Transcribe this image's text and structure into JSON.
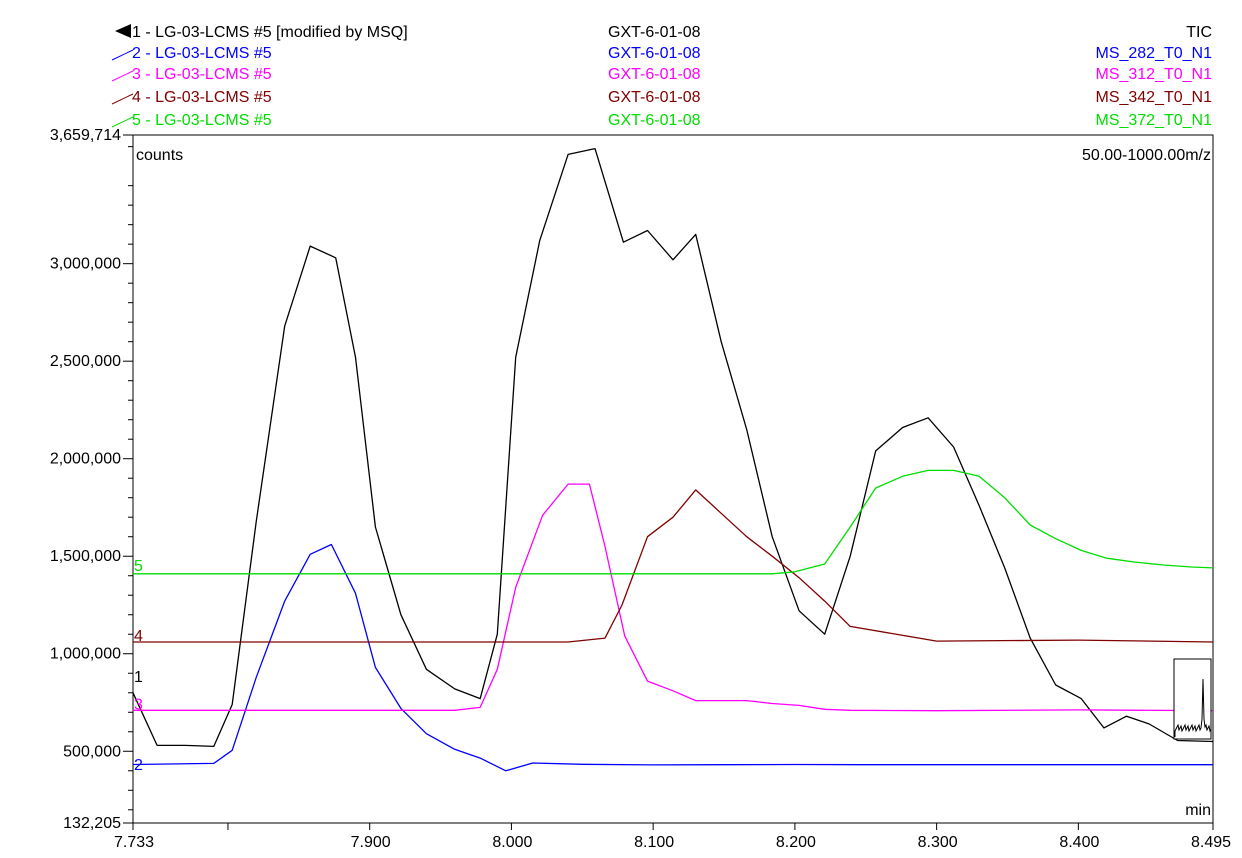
{
  "chart_data": {
    "type": "line",
    "title": "",
    "xlabel": "min",
    "ylabel": "counts",
    "mass_range": "50.00-1000.00m/z",
    "xlim": [
      7.733,
      8.495
    ],
    "ylim": [
      132205,
      3659714
    ],
    "x_ticks": [
      7.733,
      7.9,
      8.0,
      8.1,
      8.2,
      8.3,
      8.4,
      8.495
    ],
    "x_tick_labels": [
      "7.733",
      "7.900",
      "8.000",
      "8.100",
      "8.200",
      "8.300",
      "8.400",
      "8.495"
    ],
    "x_unlabeled_ticks": [
      7.8
    ],
    "y_ticks": [
      132205,
      500000,
      1000000,
      1500000,
      2000000,
      2500000,
      3000000,
      3659714
    ],
    "y_tick_labels": [
      "132,205",
      "500,000",
      "1,000,000",
      "1,500,000",
      "2,000,000",
      "2,500,000",
      "3,000,000",
      "3,659,714"
    ],
    "grid": false,
    "legend_placement": "top",
    "series": [
      {
        "id": "1",
        "label": "1 - LG-03-LCMS #5 [modified by MSQ]",
        "sample": "GXT-6-01-08",
        "channel": "TIC",
        "color": "#000000",
        "offset_label_y": 880000,
        "x": [
          7.733,
          7.75,
          7.77,
          7.79,
          7.803,
          7.82,
          7.84,
          7.858,
          7.876,
          7.89,
          7.904,
          7.922,
          7.94,
          7.96,
          7.978,
          7.99,
          8.003,
          8.02,
          8.04,
          8.059,
          8.079,
          8.096,
          8.114,
          8.13,
          8.148,
          8.166,
          8.184,
          8.203,
          8.221,
          8.239,
          8.257,
          8.276,
          8.294,
          8.312,
          8.33,
          8.348,
          8.366,
          8.384,
          8.402,
          8.418,
          8.434,
          8.45,
          8.47,
          8.495
        ],
        "y": [
          800000,
          530000,
          530000,
          525000,
          740000,
          1680000,
          2680000,
          3090000,
          3030000,
          2520000,
          1650000,
          1200000,
          920000,
          820000,
          770000,
          1100000,
          2520000,
          3120000,
          3560000,
          3590000,
          3110000,
          3170000,
          3020000,
          3150000,
          2600000,
          2150000,
          1600000,
          1220000,
          1100000,
          1500000,
          2040000,
          2160000,
          2210000,
          2060000,
          1760000,
          1440000,
          1080000,
          840000,
          770000,
          620000,
          680000,
          640000,
          555000,
          550000
        ]
      },
      {
        "id": "2",
        "label": "2 - LG-03-LCMS #5",
        "sample": "GXT-6-01-08",
        "channel": "MS_282_T0_N1",
        "color": "#0000ff",
        "offset_label_y": 430000,
        "x": [
          7.733,
          7.79,
          7.803,
          7.82,
          7.84,
          7.858,
          7.873,
          7.89,
          7.904,
          7.922,
          7.94,
          7.96,
          7.978,
          7.996,
          8.015,
          8.05,
          8.1,
          8.15,
          8.2,
          8.25,
          8.3,
          8.35,
          8.4,
          8.45,
          8.495
        ],
        "y": [
          432000,
          438000,
          505000,
          880000,
          1270000,
          1510000,
          1560000,
          1310000,
          930000,
          720000,
          590000,
          510000,
          465000,
          400000,
          440000,
          433000,
          430000,
          431000,
          432000,
          431000,
          431000,
          431000,
          431000,
          431000,
          431000
        ]
      },
      {
        "id": "3",
        "label": "3 - LG-03-LCMS #5",
        "sample": "GXT-6-01-08",
        "channel": "MS_312_T0_N1",
        "color": "#ff00ff",
        "offset_label_y": 740000,
        "x": [
          7.733,
          7.96,
          7.978,
          7.99,
          8.003,
          8.022,
          8.04,
          8.055,
          8.066,
          8.08,
          8.096,
          8.114,
          8.13,
          8.148,
          8.166,
          8.184,
          8.203,
          8.221,
          8.239,
          8.3,
          8.4,
          8.495
        ],
        "y": [
          710000,
          710000,
          725000,
          920000,
          1340000,
          1710000,
          1870000,
          1870000,
          1550000,
          1090000,
          860000,
          810000,
          760000,
          760000,
          760000,
          745000,
          735000,
          715000,
          710000,
          708000,
          712000,
          708000
        ]
      },
      {
        "id": "4",
        "label": "4 - LG-03-LCMS #5",
        "sample": "GXT-6-01-08",
        "channel": "MS_342_T0_N1",
        "color": "#800000",
        "offset_label_y": 1090000,
        "x": [
          7.733,
          8.04,
          8.066,
          8.078,
          8.096,
          8.114,
          8.13,
          8.148,
          8.166,
          8.184,
          8.203,
          8.221,
          8.239,
          8.3,
          8.4,
          8.495
        ],
        "y": [
          1060000,
          1060000,
          1080000,
          1250000,
          1600000,
          1700000,
          1840000,
          1720000,
          1600000,
          1500000,
          1390000,
          1270000,
          1140000,
          1065000,
          1070000,
          1060000
        ]
      },
      {
        "id": "5",
        "label": "5 - LG-03-LCMS #5",
        "sample": "GXT-6-01-08",
        "channel": "MS_372_T0_N1",
        "color": "#00dd00",
        "offset_label_y": 1450000,
        "x": [
          7.733,
          8.184,
          8.2,
          8.221,
          8.239,
          8.257,
          8.276,
          8.294,
          8.312,
          8.33,
          8.348,
          8.366,
          8.384,
          8.402,
          8.42,
          8.44,
          8.46,
          8.48,
          8.495
        ],
        "y": [
          1410000,
          1410000,
          1420000,
          1460000,
          1650000,
          1850000,
          1910000,
          1940000,
          1940000,
          1910000,
          1800000,
          1660000,
          1590000,
          1530000,
          1490000,
          1470000,
          1455000,
          1445000,
          1440000
        ]
      }
    ]
  }
}
